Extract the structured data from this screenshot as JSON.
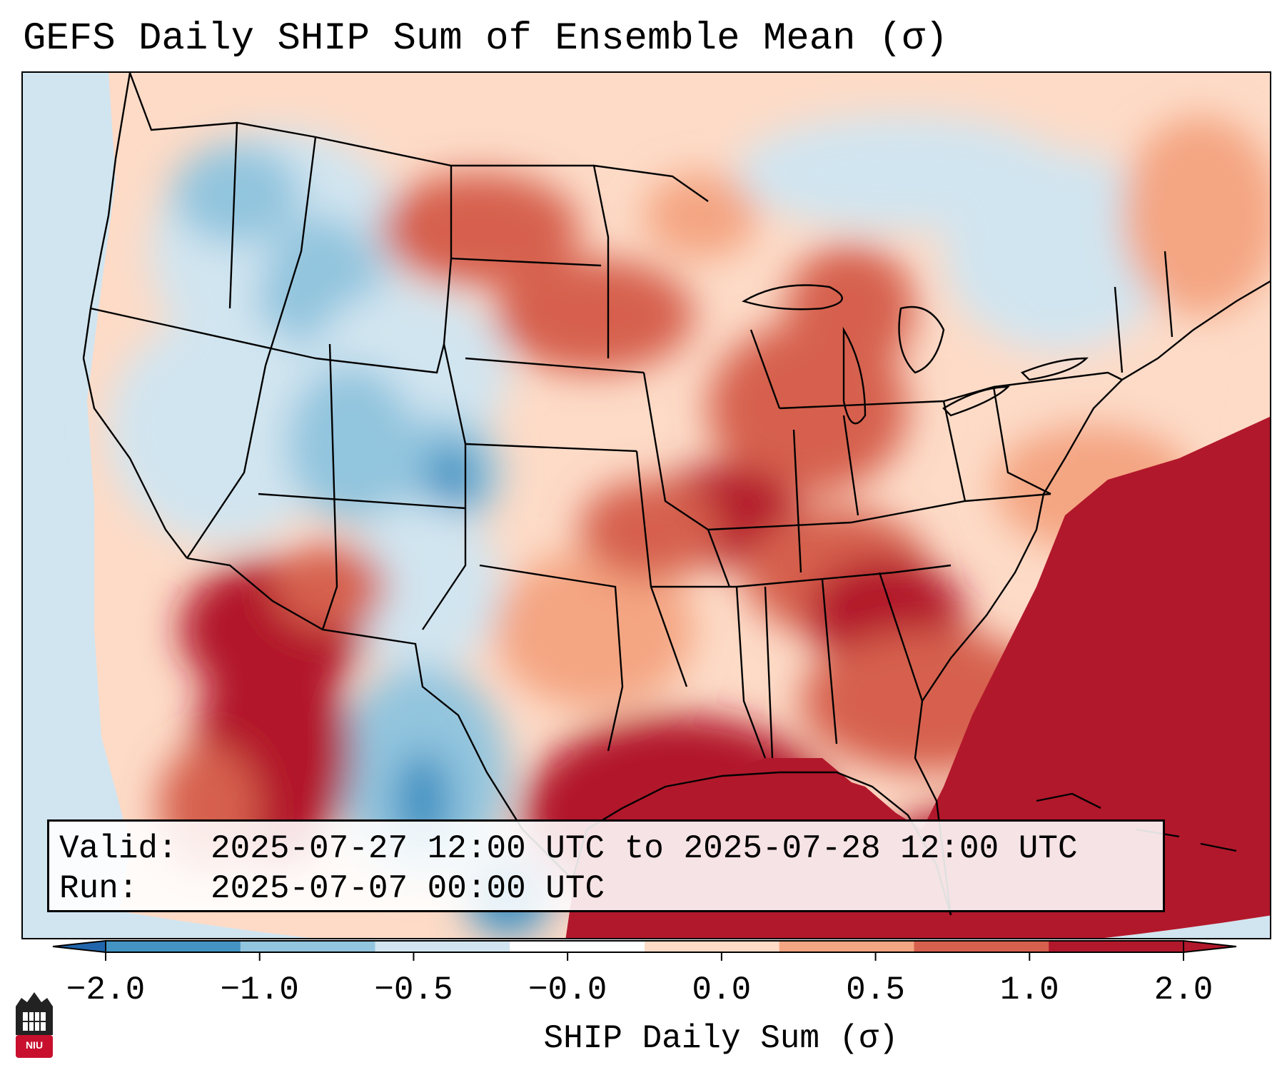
{
  "title": "GEFS Daily SHIP Sum of Ensemble Mean (σ)",
  "info": {
    "valid_label": "Valid:",
    "valid_value": "2025-07-27 12:00 UTC to 2025-07-28 12:00 UTC",
    "run_label": "Run:",
    "run_value": "2025-07-07 00:00 UTC"
  },
  "colorbar": {
    "label": "SHIP Daily Sum (σ)",
    "ticks": [
      "−2.0",
      "−1.0",
      "−0.5",
      "−0.0",
      "0.0",
      "0.5",
      "1.0",
      "2.0"
    ],
    "bin_colors": [
      "#4393c3",
      "#92c5de",
      "#d1e5f0",
      "#ffffff",
      "#fddbc7",
      "#f4a582",
      "#d6604d",
      "#b2182b"
    ],
    "extend_low_color": "#2166ac",
    "extend_high_color": "#b2182b"
  },
  "map": {
    "projection": "lambert-conformal",
    "region": "Contiguous United States",
    "field": "SHIP daily sum anomaly",
    "outside_domain_color": "#d1e5f0"
  },
  "logo": {
    "text": "NIU"
  }
}
